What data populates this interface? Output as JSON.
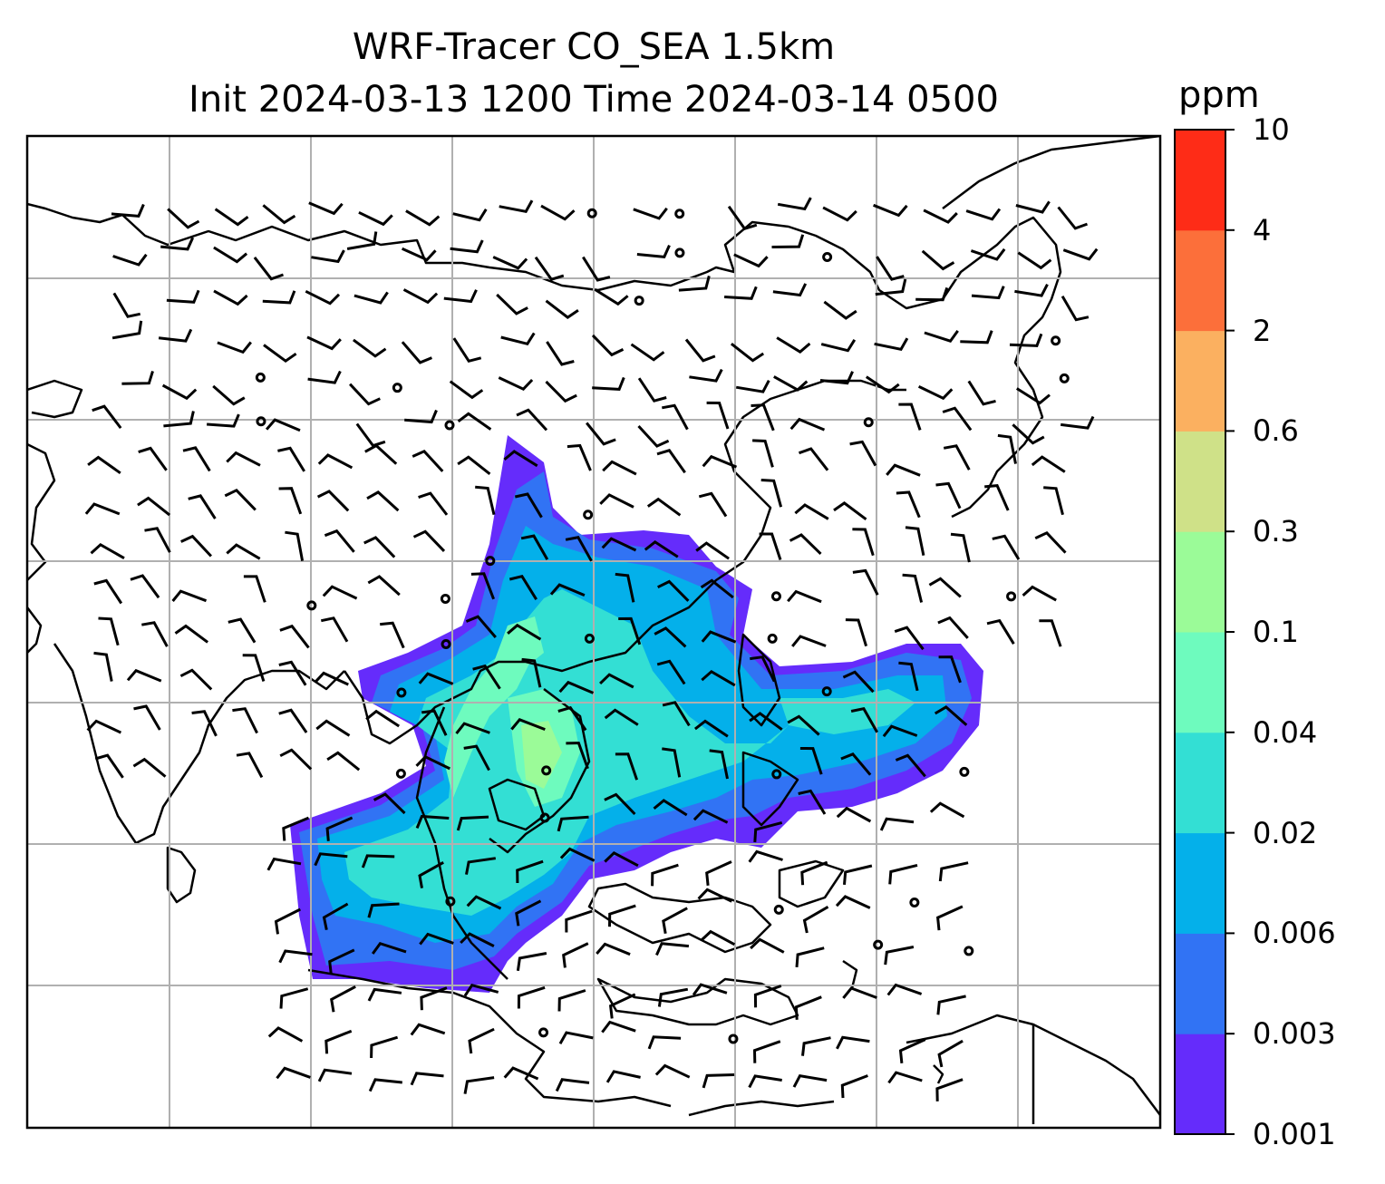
{
  "title": {
    "line1": "WRF-Tracer CO_SEA 1.5km",
    "line2": "Init 2024-03-13 1200 Time 2024-03-14 0500"
  },
  "colorbar": {
    "unit": "ppm",
    "levels": [
      "0.001",
      "0.003",
      "0.006",
      "0.02",
      "0.04",
      "0.1",
      "0.3",
      "0.6",
      "2",
      "4",
      "10"
    ],
    "colors": [
      "#652cfb",
      "#3173f4",
      "#04b0ea",
      "#33dfd4",
      "#6efbbe",
      "#9bfb98",
      "#cfe188",
      "#fbb060",
      "#fc6f3a",
      "#fe2c17"
    ]
  },
  "map": {
    "gridlines": true,
    "coastlines": true,
    "wind_barbs": true,
    "colors": {
      "grid": "#b0b0b0",
      "frame": "#000000",
      "coast": "#000000"
    }
  }
}
